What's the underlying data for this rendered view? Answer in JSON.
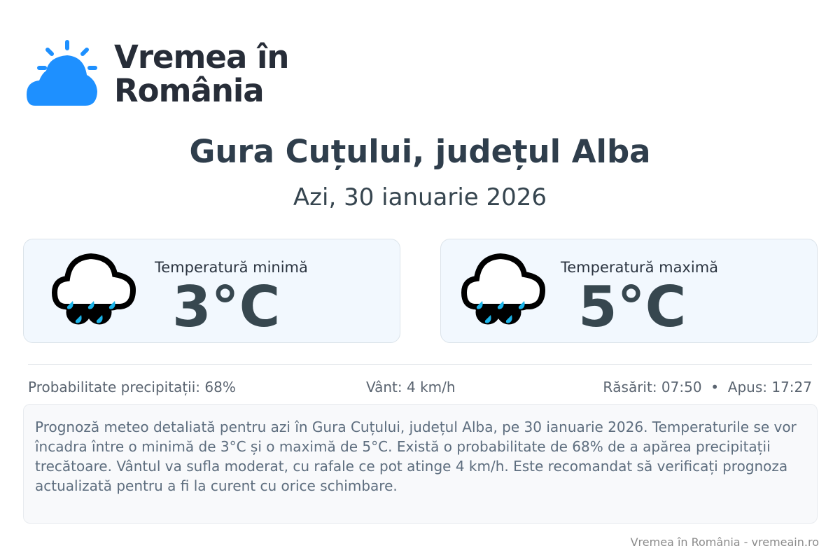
{
  "brand": {
    "line1": "Vremea în",
    "line2": "România",
    "accent": "#1e90ff"
  },
  "title": "Gura Cuțului, județul Alba",
  "date": "Azi, 30 ianuarie 2026",
  "cards": [
    {
      "label": "Temperatură minimă",
      "value": "3°C",
      "icon": "rain-cloud-icon"
    },
    {
      "label": "Temperatură maximă",
      "value": "5°C",
      "icon": "rain-cloud-icon"
    }
  ],
  "stats": {
    "precip": "Probabilitate precipitații: 68%",
    "wind": "Vânt: 4 km/h",
    "sun": "Răsărit: 07:50  •  Apus: 17:27"
  },
  "description": "Prognoză meteo detaliată pentru azi în Gura Cuțului, județul Alba, pe 30 ianuarie 2026. Temperaturile se vor încadra între o minimă de 3°C și o maximă de 5°C. Există o probabilitate de 68% de a apărea precipitații trecătoare. Vântul va sufla moderat, cu rafale ce pot atinge 4 km/h. Este recomandat să verificați prognoza actualizată pentru a fi la curent cu orice schimbare.",
  "footer": "Vremea în România - vremeain.ro"
}
